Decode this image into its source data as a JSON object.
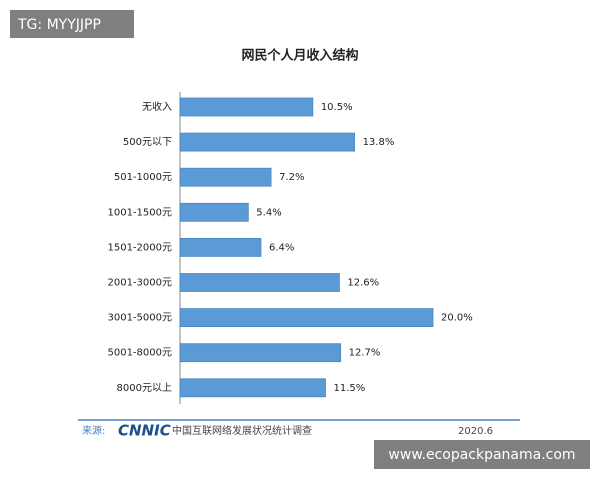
{
  "chart_data": {
    "type": "bar",
    "orientation": "horizontal",
    "title": "网民个人月收入结构",
    "categories": [
      "无收入",
      "500元以下",
      "501-1000元",
      "1001-1500元",
      "1501-2000元",
      "2001-3000元",
      "3001-5000元",
      "5001-8000元",
      "8000元以上"
    ],
    "values": [
      10.5,
      13.8,
      7.2,
      5.4,
      6.4,
      12.6,
      20.0,
      12.7,
      11.5
    ],
    "value_labels": [
      "10.5%",
      "13.8%",
      "7.2%",
      "5.4%",
      "6.4%",
      "12.6%",
      "20.0%",
      "12.7%",
      "11.5%"
    ],
    "color": "#5b9bd5"
  },
  "footer": {
    "source_label": "来源:",
    "logo": "CNNIC",
    "survey": "中国互联网络发展状况统计调查",
    "date": "2020.6"
  },
  "watermarks": {
    "top_left": "TG: MYYJJPP",
    "bottom_right": "www.ecopackpanama.com"
  }
}
